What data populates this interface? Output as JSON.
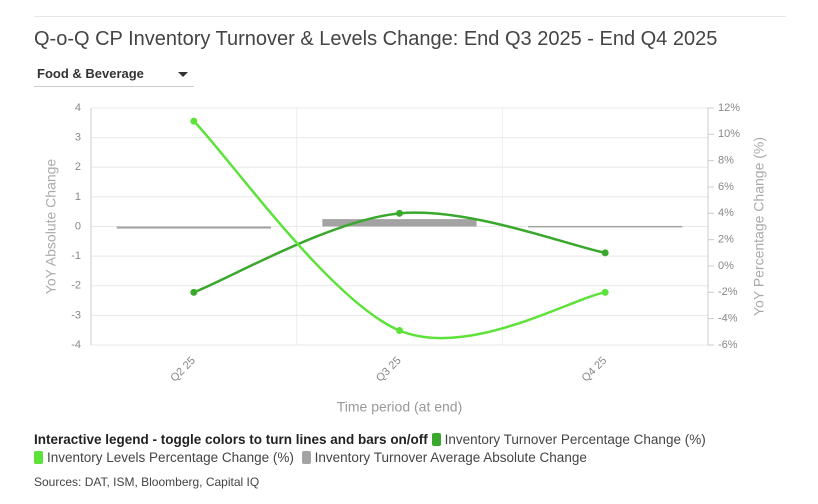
{
  "chart_data": {
    "type": "bar-line",
    "title": "Q-o-Q CP Inventory Turnover & Levels Change: End Q3 2025 - End Q4 2025",
    "dropdown": "Food & Beverage",
    "categories": [
      "Q2 25",
      "Q3 25",
      "Q4 25"
    ],
    "xlabel": "Time period (at end)",
    "ylabel": "YoY Absolute Change",
    "y2label": "YoY Percentage Change (%)",
    "ylim": [
      -4,
      4
    ],
    "yticks": [
      -4,
      -3,
      -2,
      -1,
      0,
      1,
      2,
      3,
      4
    ],
    "y2lim": [
      -6,
      12
    ],
    "y2ticks": [
      {
        "value": -6,
        "label": "-6%"
      },
      {
        "value": -4,
        "label": "-4%"
      },
      {
        "value": -2,
        "label": "-2%"
      },
      {
        "value": 0,
        "label": "0%"
      },
      {
        "value": 2,
        "label": "2%"
      },
      {
        "value": 4,
        "label": "4%"
      },
      {
        "value": 6,
        "label": "6%"
      },
      {
        "value": 8,
        "label": "8%"
      },
      {
        "value": 10,
        "label": "10%"
      },
      {
        "value": 12,
        "label": "12%"
      }
    ],
    "grid": true,
    "legend_title": "Interactive legend - toggle colors to turn lines and bars on/off",
    "series": [
      {
        "name": "Inventory Turnover Percentage Change (%)",
        "kind": "line",
        "axis": "y2",
        "color": "#3aa82c",
        "values": [
          -2,
          4,
          1
        ]
      },
      {
        "name": "Inventory Levels Percentage Change (%)",
        "kind": "line",
        "axis": "y2",
        "color": "#5de23a",
        "values": [
          11,
          -4.9,
          -2
        ]
      },
      {
        "name": "Inventory Turnover Average Absolute Change",
        "kind": "bar",
        "axis": "y",
        "color": "#a3a3a3",
        "values": [
          -0.07,
          0.25,
          0.02
        ]
      }
    ],
    "source": "Sources: DAT, ISM, Bloomberg, Capital IQ"
  }
}
